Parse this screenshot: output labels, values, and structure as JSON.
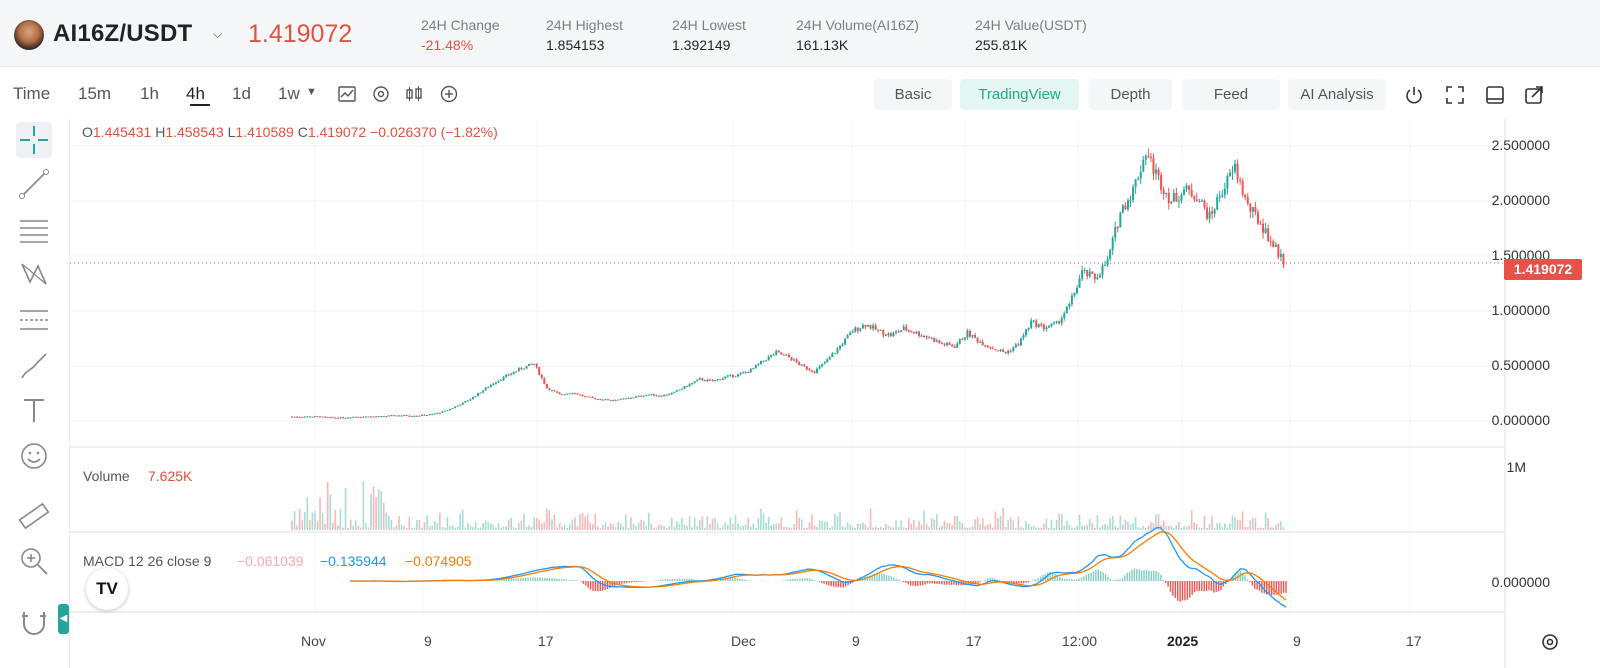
{
  "header": {
    "pair": "AI16Z/USDT",
    "price": "1.419072",
    "stats": [
      {
        "label": "24H Change",
        "value": "-21.48%",
        "negative": true
      },
      {
        "label": "24H Highest",
        "value": "1.854153",
        "negative": false
      },
      {
        "label": "24H Lowest",
        "value": "1.392149",
        "negative": false
      },
      {
        "label": "24H Volume(AI16Z)",
        "value": "161.13K",
        "negative": false
      },
      {
        "label": "24H Value(USDT)",
        "value": "255.81K",
        "negative": false
      }
    ]
  },
  "toolbar": {
    "timeframes": [
      "Time",
      "15m",
      "1h",
      "4h",
      "1d",
      "1w"
    ],
    "active_timeframe": "4h",
    "views": [
      "Basic",
      "TradingView",
      "Depth",
      "Feed",
      "AI Analysis"
    ],
    "active_view": "TradingView"
  },
  "legend": {
    "o_key": "O",
    "o": "1.445431",
    "h_key": "H",
    "h": "1.458543",
    "l_key": "L",
    "l": "1.410589",
    "c_key": "C",
    "c": "1.419072",
    "change": "−0.026370 (−1.82%)"
  },
  "volume": {
    "label": "Volume",
    "value": "7.625K",
    "scale": "1M"
  },
  "macd": {
    "label": "MACD 12 26 close 9",
    "hist": "−0.061039",
    "macd": "−0.135944",
    "signal": "−0.074905",
    "axis": "0.000000"
  },
  "price_axis": [
    "2.500000",
    "2.000000",
    "1.500000",
    "1.000000",
    "0.500000",
    "0.000000"
  ],
  "current_price_tag": "1.419072",
  "time_axis": [
    "Nov",
    "9",
    "17",
    "Dec",
    "9",
    "17",
    "12:00",
    "2025",
    "9",
    "17"
  ],
  "tv_logo": "TV",
  "colors": {
    "up": "#26a69a",
    "down": "#ef5350",
    "accent": "#e0513f",
    "macd": "#2196f3",
    "signal": "#f57c00"
  },
  "chart_data": {
    "type": "candlestick",
    "price_range": [
      0,
      2.6
    ],
    "close_series": [
      0.04,
      0.04,
      0.04,
      0.03,
      0.03,
      0.04,
      0.04,
      0.04,
      0.05,
      0.05,
      0.05,
      0.06,
      0.09,
      0.14,
      0.2,
      0.28,
      0.36,
      0.42,
      0.48,
      0.52,
      0.3,
      0.24,
      0.26,
      0.22,
      0.2,
      0.19,
      0.2,
      0.22,
      0.24,
      0.23,
      0.26,
      0.32,
      0.38,
      0.36,
      0.4,
      0.42,
      0.46,
      0.55,
      0.62,
      0.58,
      0.5,
      0.45,
      0.55,
      0.68,
      0.82,
      0.88,
      0.82,
      0.78,
      0.84,
      0.8,
      0.76,
      0.7,
      0.68,
      0.8,
      0.72,
      0.66,
      0.62,
      0.7,
      0.9,
      0.85,
      0.88,
      1.05,
      1.35,
      1.3,
      1.45,
      1.9,
      2.1,
      2.45,
      2.2,
      2.0,
      2.1,
      2.05,
      1.85,
      2.1,
      2.3,
      1.95,
      1.8,
      1.6,
      1.42
    ]
  }
}
